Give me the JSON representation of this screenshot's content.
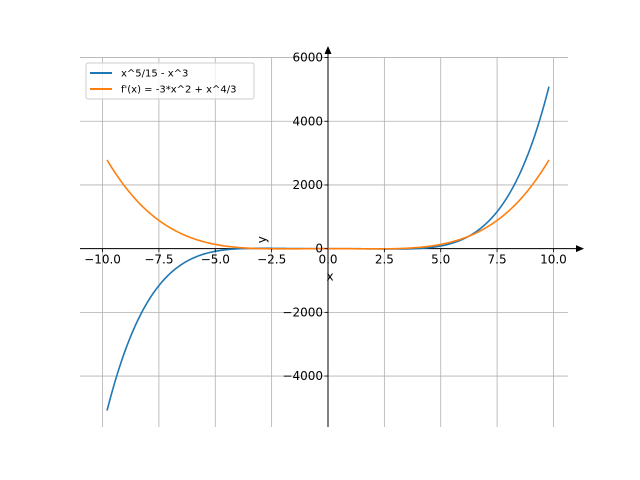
{
  "chart_data": {
    "type": "line",
    "title": "",
    "xlabel": "x",
    "ylabel": "y",
    "xlim": [
      -11.0,
      11.0
    ],
    "ylim": [
      -5600,
      6300
    ],
    "grid": true,
    "legend_position": "top-left",
    "x_ticks": [
      -10.0,
      -7.5,
      -5.0,
      -2.5,
      0.0,
      2.5,
      5.0,
      7.5,
      10.0
    ],
    "x_tick_labels": [
      "−10.0",
      "−7.5",
      "−5.0",
      "−2.5",
      "0.0",
      "2.5",
      "5.0",
      "7.5",
      "10.0"
    ],
    "y_ticks": [
      -4000,
      -2000,
      0,
      2000,
      4000,
      6000
    ],
    "y_tick_labels": [
      "−4000",
      "−2000",
      "0",
      "2000",
      "4000",
      "6000"
    ],
    "x_range": [
      -9.8,
      9.8
    ],
    "series": [
      {
        "name": "x^5/15 - x^3",
        "color": "#1f77b4",
        "formula": "x^5/15 - x^3",
        "sample_points": [
          [
            -9.8,
            -5107.2
          ],
          [
            -7.5,
            -1142.6
          ],
          [
            -5.0,
            -83.3
          ],
          [
            0.0,
            0.0
          ],
          [
            5.0,
            83.3
          ],
          [
            7.5,
            1142.6
          ],
          [
            9.8,
            5107.2
          ]
        ]
      },
      {
        "name": "f'(x) = -3*x^2 + x^4/3",
        "color": "#ff7f0e",
        "formula": "-3*x^2 + x^4/3",
        "sample_points": [
          [
            -9.8,
            2810.4
          ],
          [
            -7.5,
            885.9
          ],
          [
            -5.0,
            133.3
          ],
          [
            0.0,
            0.0
          ],
          [
            5.0,
            133.3
          ],
          [
            7.5,
            885.9
          ],
          [
            9.8,
            2810.4
          ]
        ]
      }
    ]
  }
}
